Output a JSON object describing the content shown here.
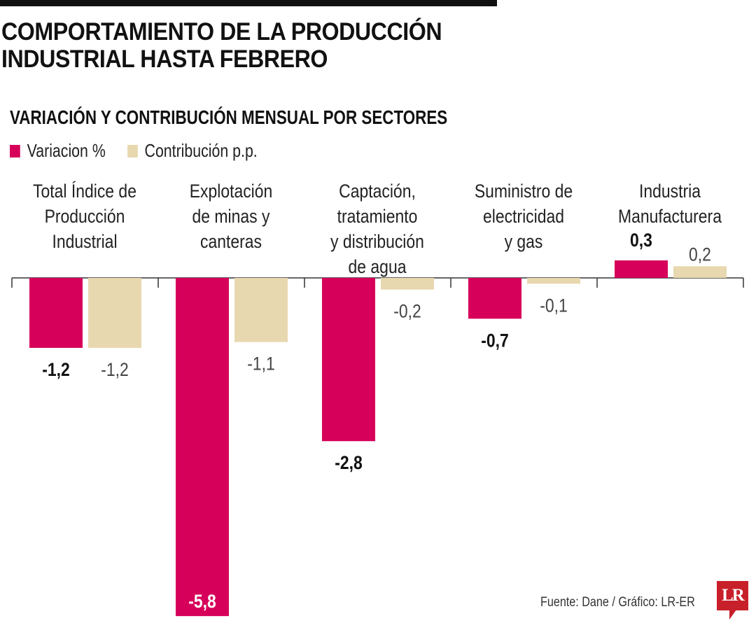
{
  "title_line1": "COMPORTAMIENTO DE LA PRODUCCIÓN",
  "title_line2": "INDUSTRIAL HASTA FEBRERO",
  "source": "Fuente: Dane / Gráfico: LR-ER",
  "logo": "LR",
  "colors": {
    "variacion": "#D6005A",
    "contribucion": "#E8D8B0"
  },
  "chart_data": {
    "type": "bar",
    "title": "VARIACIÓN Y CONTRIBUCIÓN MENSUAL POR SECTORES",
    "legend_position": "top-left",
    "categories": [
      [
        "Total Índice de",
        "Producción",
        "Industrial"
      ],
      [
        "Explotación",
        "de minas y",
        "canteras"
      ],
      [
        "Captación,",
        "tratamiento",
        "y distribución",
        "de agua"
      ],
      [
        "Suministro de",
        "electricidad",
        "y gas"
      ],
      [
        "Industria",
        "Manufacturera"
      ]
    ],
    "series": [
      {
        "name": "Variacion %",
        "values": [
          -1.2,
          -5.8,
          -2.8,
          -0.7,
          0.3
        ],
        "labels": [
          "-1,2",
          "-5,8",
          "-2,8",
          "-0,7",
          "0,3"
        ]
      },
      {
        "name": "Contribución p.p.",
        "values": [
          -1.2,
          -1.1,
          -0.2,
          -0.1,
          0.2
        ],
        "labels": [
          "-1,2",
          "-1,1",
          "-0,2",
          "-0,1",
          "0,2"
        ]
      }
    ],
    "ylim": [
      -5.8,
      0.3
    ],
    "grid": false
  }
}
